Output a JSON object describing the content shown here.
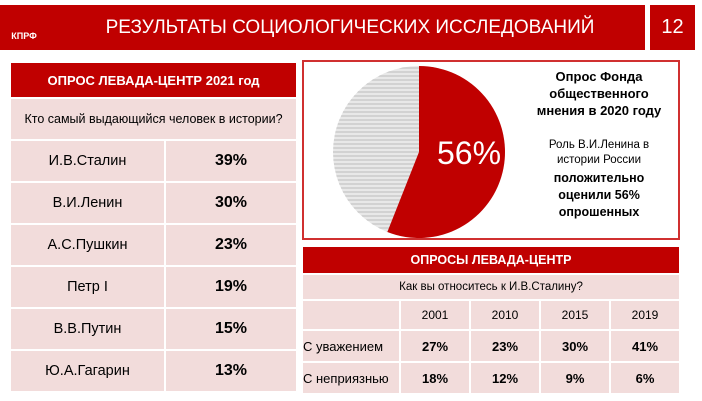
{
  "header": {
    "logo": "КПРФ",
    "title": "РЕЗУЛЬТАТЫ СОЦИОЛОГИЧЕСКИХ ИССЛЕДОВАНИЙ",
    "page": "12"
  },
  "left_table": {
    "title": "ОПРОС ЛЕВАДА-ЦЕНТР 2021 год",
    "question": "Кто самый выдающийся человек в истории?",
    "rows": [
      [
        "И.В.Сталин",
        "39%"
      ],
      [
        "В.И.Ленин",
        "30%"
      ],
      [
        "А.С.Пушкин",
        "23%"
      ],
      [
        "Петр I",
        "19%"
      ],
      [
        "В.В.Путин",
        "15%"
      ],
      [
        "Ю.А.Гагарин",
        "13%"
      ]
    ]
  },
  "poll_box": {
    "pie": {
      "value": 56,
      "label": "56%",
      "color": "#c00000"
    },
    "title": "Опрос Фонда общественного мнения в 2020 году",
    "text": "Роль В.И.Ленина в истории России",
    "result": "положительно оценили 56% опрошенных"
  },
  "right_table": {
    "title": "ОПРОСЫ ЛЕВАДА-ЦЕНТР",
    "question": "Как вы относитесь к И.В.Сталину?",
    "columns": [
      "2001",
      "2010",
      "2015",
      "2019"
    ],
    "rows": [
      [
        "С уважением",
        "27%",
        "23%",
        "30%",
        "41%"
      ],
      [
        "С неприязнью",
        "18%",
        "12%",
        "9%",
        "6%"
      ]
    ]
  }
}
